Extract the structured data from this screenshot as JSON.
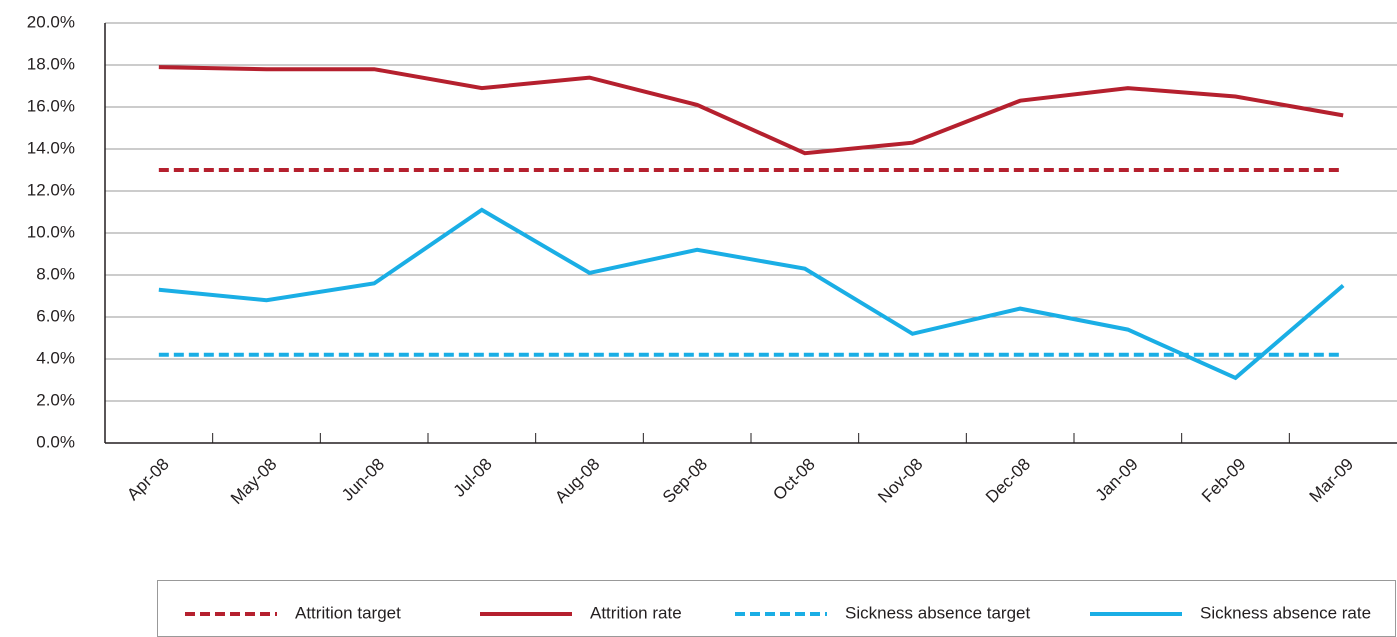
{
  "chart_data": {
    "type": "line",
    "categories": [
      "Apr-08",
      "May-08",
      "Jun-08",
      "Jul-08",
      "Aug-08",
      "Sep-08",
      "Oct-08",
      "Nov-08",
      "Dec-08",
      "Jan-09",
      "Feb-09",
      "Mar-09"
    ],
    "series": [
      {
        "name": "Attrition target",
        "color": "#b5202e",
        "style": "dashed",
        "values": [
          13,
          13,
          13,
          13,
          13,
          13,
          13,
          13,
          13,
          13,
          13,
          13
        ]
      },
      {
        "name": "Attrition rate",
        "color": "#b5202e",
        "style": "solid",
        "values": [
          17.9,
          17.8,
          17.8,
          16.9,
          17.4,
          16.1,
          13.8,
          14.3,
          16.3,
          16.9,
          16.5,
          15.6
        ]
      },
      {
        "name": "Sickness absence target",
        "color": "#1aaee5",
        "style": "dashed",
        "values": [
          4.2,
          4.2,
          4.2,
          4.2,
          4.2,
          4.2,
          4.2,
          4.2,
          4.2,
          4.2,
          4.2,
          4.2
        ]
      },
      {
        "name": "Sickness absence rate",
        "color": "#1aaee5",
        "style": "solid",
        "values": [
          7.3,
          6.8,
          7.6,
          11.1,
          8.1,
          9.2,
          8.3,
          5.2,
          6.4,
          5.4,
          3.1,
          7.5
        ]
      }
    ],
    "ylim": [
      0,
      20
    ],
    "yticks": [
      {
        "value": 0,
        "label": "0.0%"
      },
      {
        "value": 2,
        "label": "2.0%"
      },
      {
        "value": 4,
        "label": "4.0%"
      },
      {
        "value": 6,
        "label": "6.0%"
      },
      {
        "value": 8,
        "label": "8.0%"
      },
      {
        "value": 10,
        "label": "10.0%"
      },
      {
        "value": 12,
        "label": "12.0%"
      },
      {
        "value": 14,
        "label": "14.0%"
      },
      {
        "value": 16,
        "label": "16.0%"
      },
      {
        "value": 18,
        "label": "18.0%"
      },
      {
        "value": 20,
        "label": "20.0%"
      }
    ],
    "grid": true
  }
}
